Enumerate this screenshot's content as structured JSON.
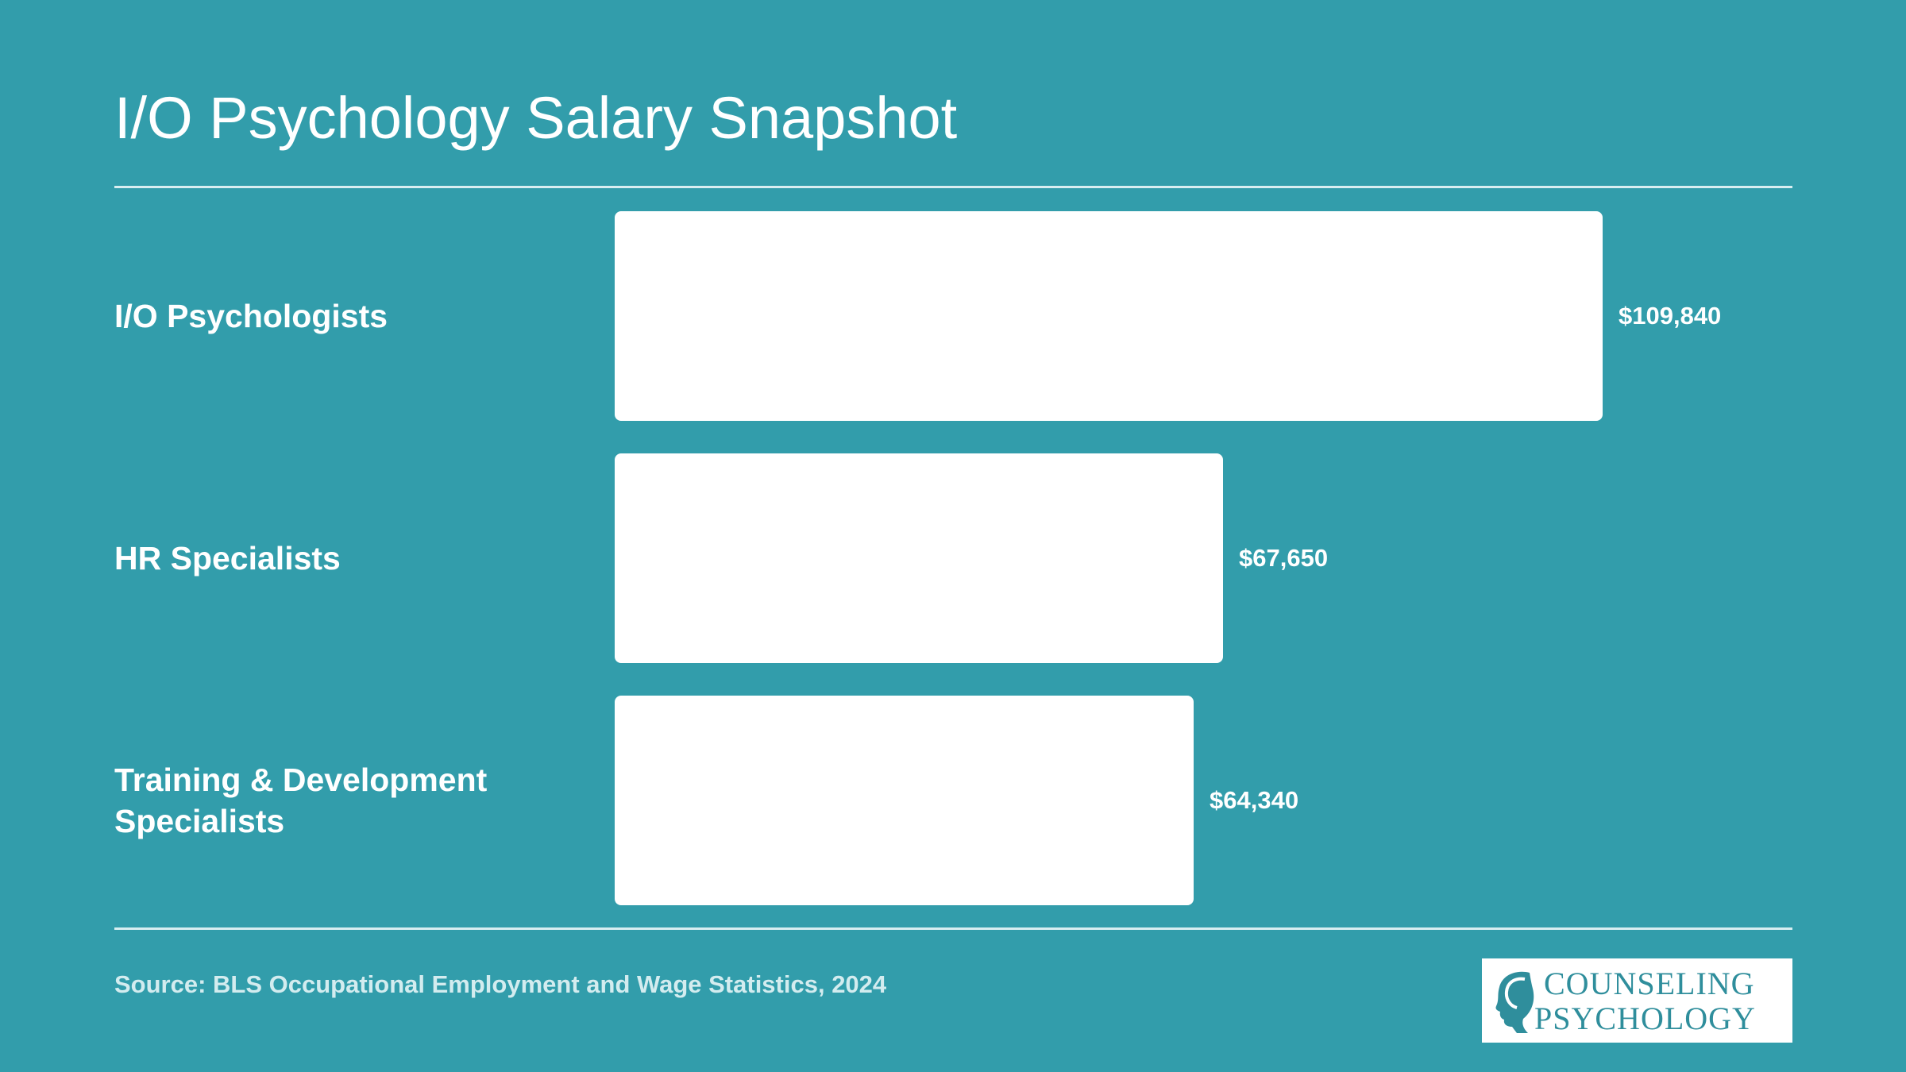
{
  "title": "I/O Psychology Salary Snapshot",
  "source": "Source: BLS Occupational Employment and Wage Statistics, 2024",
  "logo": {
    "line1": "COUNSELING",
    "line2": "PSYCHOLOGY",
    "icon": "head-silhouette-icon"
  },
  "colors": {
    "background": "#329dab",
    "bar": "#ffffff",
    "text": "#ffffff",
    "source": "#d3ecef",
    "logo_text": "#2f8e9c"
  },
  "chart_data": {
    "type": "bar",
    "orientation": "horizontal",
    "categories": [
      "I/O Psychologists",
      "HR Specialists",
      "Training & Development Specialists"
    ],
    "values": [
      109840,
      67650,
      64340
    ],
    "value_labels": [
      "$109,840",
      "$67,650",
      "$64,340"
    ],
    "title": "I/O Psychology Salary Snapshot",
    "xlim": [
      0,
      109840
    ],
    "grid": false,
    "legend": "none"
  }
}
